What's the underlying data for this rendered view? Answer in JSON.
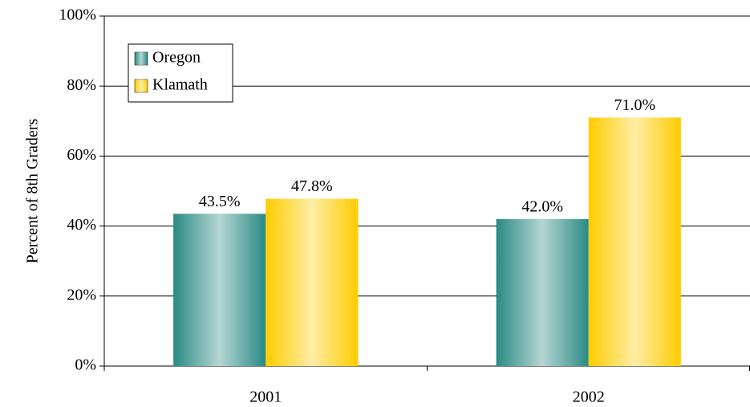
{
  "chart_data": {
    "type": "bar",
    "y_label": "Percent of 8th Graders",
    "categories": [
      "2001",
      "2002"
    ],
    "series": [
      {
        "name": "Oregon",
        "color": "#2a8a84",
        "values": [
          43.5,
          42.0
        ],
        "value_labels": [
          "43.5%",
          "42.0%"
        ]
      },
      {
        "name": "Klamath",
        "color": "#ffcc00",
        "values": [
          47.8,
          71.0
        ],
        "value_labels": [
          "47.8%",
          "71.0%"
        ]
      }
    ],
    "ylim": [
      0,
      100
    ],
    "yticks": [
      {
        "value": 0,
        "label": "0%"
      },
      {
        "value": 20,
        "label": "20%"
      },
      {
        "value": 40,
        "label": "40%"
      },
      {
        "value": 60,
        "label": "60%"
      },
      {
        "value": 80,
        "label": "80%"
      },
      {
        "value": 100,
        "label": "100%"
      }
    ],
    "grid": true,
    "legend": "upper-left"
  }
}
